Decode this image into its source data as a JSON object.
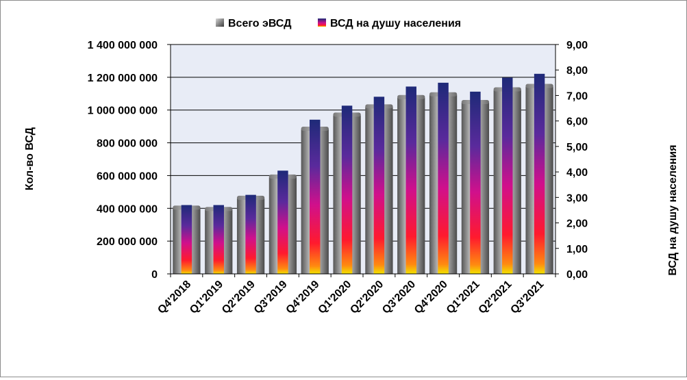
{
  "chart_data": {
    "type": "bar",
    "categories": [
      "Q4'2018",
      "Q1'2019",
      "Q2'2019",
      "Q3'2019",
      "Q4'2019",
      "Q1'2020",
      "Q2'2020",
      "Q3'2020",
      "Q4'2020",
      "Q1'2021",
      "Q2'2021",
      "Q3'2021"
    ],
    "series": [
      {
        "name": "Всего эВСД",
        "axis": "left",
        "values": [
          400000000,
          392000000,
          460000000,
          590000000,
          882000000,
          968000000,
          1018000000,
          1075000000,
          1092000000,
          1045000000,
          1122000000,
          1143000000
        ]
      },
      {
        "name": "ВСД на душу населения",
        "axis": "right",
        "values": [
          2.7,
          2.7,
          3.1,
          4.05,
          6.05,
          6.6,
          6.95,
          7.35,
          7.5,
          7.15,
          7.7,
          7.85
        ]
      }
    ],
    "ylabel": "Кол-во ВСД",
    "ylabel_right": "ВСД на душу населения",
    "ylim": [
      0,
      1400000000
    ],
    "ylim_right": [
      0,
      9
    ],
    "yticks_left": [
      "0",
      "200 000 000",
      "400 000 000",
      "600 000 000",
      "800 000 000",
      "1 000 000 000",
      "1 200 000 000",
      "1 400 000 000"
    ],
    "yticks_right": [
      "0,00",
      "1,00",
      "2,00",
      "3,00",
      "4,00",
      "5,00",
      "6,00",
      "7,00",
      "8,00",
      "9,00"
    ],
    "grid": true,
    "legend_position": "top-center",
    "colors": {
      "plot_background": "#e8ecf6",
      "gridline": "#000000",
      "bar_gray_light": "#e6e6e6",
      "bar_gray_dark": "#4a4a4a",
      "bar_top": "#1e2a78",
      "bar_mid": "#d0108c",
      "bar_bottom": "#f2e400"
    }
  }
}
